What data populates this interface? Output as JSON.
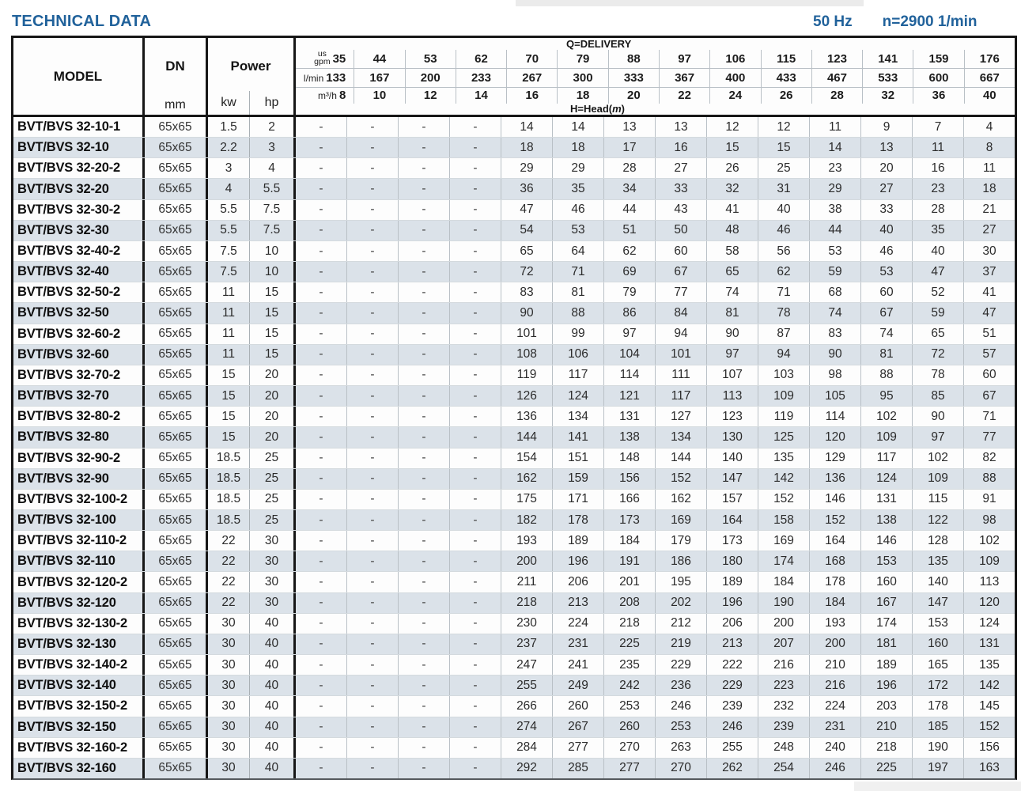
{
  "page": {
    "title": "TECHNICAL DATA",
    "frequency": "50 Hz",
    "speed": "n=2900 1/min"
  },
  "table": {
    "headers": {
      "model": "MODEL",
      "dn": "DN",
      "dn_unit": "mm",
      "power": "Power",
      "power_kw": "kw",
      "power_hp": "hp",
      "delivery_label": "Q=DELIVERY",
      "head_label_pre": "H=Head(",
      "head_label_m": "m",
      "head_label_post": ")",
      "unit_us": "us",
      "unit_gpm": "gpm",
      "unit_lmin": "l/min",
      "unit_m3h": "m³/h",
      "gpm_values": [
        "35",
        "44",
        "53",
        "62",
        "70",
        "79",
        "88",
        "97",
        "106",
        "115",
        "123",
        "141",
        "159",
        "176"
      ],
      "lmin_values": [
        "133",
        "167",
        "200",
        "233",
        "267",
        "300",
        "333",
        "367",
        "400",
        "433",
        "467",
        "533",
        "600",
        "667"
      ],
      "m3h_values": [
        "8",
        "10",
        "12",
        "14",
        "16",
        "18",
        "20",
        "22",
        "24",
        "26",
        "28",
        "32",
        "36",
        "40"
      ]
    },
    "rows": [
      {
        "model": "BVT/BVS 32-10-1",
        "dn": "65x65",
        "kw": "1.5",
        "hp": "2",
        "head": [
          "-",
          "-",
          "-",
          "-",
          "14",
          "14",
          "13",
          "13",
          "12",
          "12",
          "11",
          "9",
          "7",
          "4"
        ]
      },
      {
        "model": "BVT/BVS 32-10",
        "dn": "65x65",
        "kw": "2.2",
        "hp": "3",
        "head": [
          "-",
          "-",
          "-",
          "-",
          "18",
          "18",
          "17",
          "16",
          "15",
          "15",
          "14",
          "13",
          "11",
          "8"
        ]
      },
      {
        "model": "BVT/BVS 32-20-2",
        "dn": "65x65",
        "kw": "3",
        "hp": "4",
        "head": [
          "-",
          "-",
          "-",
          "-",
          "29",
          "29",
          "28",
          "27",
          "26",
          "25",
          "23",
          "20",
          "16",
          "11"
        ]
      },
      {
        "model": "BVT/BVS 32-20",
        "dn": "65x65",
        "kw": "4",
        "hp": "5.5",
        "head": [
          "-",
          "-",
          "-",
          "-",
          "36",
          "35",
          "34",
          "33",
          "32",
          "31",
          "29",
          "27",
          "23",
          "18"
        ]
      },
      {
        "model": "BVT/BVS 32-30-2",
        "dn": "65x65",
        "kw": "5.5",
        "hp": "7.5",
        "head": [
          "-",
          "-",
          "-",
          "-",
          "47",
          "46",
          "44",
          "43",
          "41",
          "40",
          "38",
          "33",
          "28",
          "21"
        ]
      },
      {
        "model": "BVT/BVS 32-30",
        "dn": "65x65",
        "kw": "5.5",
        "hp": "7.5",
        "head": [
          "-",
          "-",
          "-",
          "-",
          "54",
          "53",
          "51",
          "50",
          "48",
          "46",
          "44",
          "40",
          "35",
          "27"
        ]
      },
      {
        "model": "BVT/BVS 32-40-2",
        "dn": "65x65",
        "kw": "7.5",
        "hp": "10",
        "head": [
          "-",
          "-",
          "-",
          "-",
          "65",
          "64",
          "62",
          "60",
          "58",
          "56",
          "53",
          "46",
          "40",
          "30"
        ]
      },
      {
        "model": "BVT/BVS 32-40",
        "dn": "65x65",
        "kw": "7.5",
        "hp": "10",
        "head": [
          "-",
          "-",
          "-",
          "-",
          "72",
          "71",
          "69",
          "67",
          "65",
          "62",
          "59",
          "53",
          "47",
          "37"
        ]
      },
      {
        "model": "BVT/BVS 32-50-2",
        "dn": "65x65",
        "kw": "11",
        "hp": "15",
        "head": [
          "-",
          "-",
          "-",
          "-",
          "83",
          "81",
          "79",
          "77",
          "74",
          "71",
          "68",
          "60",
          "52",
          "41"
        ]
      },
      {
        "model": "BVT/BVS 32-50",
        "dn": "65x65",
        "kw": "11",
        "hp": "15",
        "head": [
          "-",
          "-",
          "-",
          "-",
          "90",
          "88",
          "86",
          "84",
          "81",
          "78",
          "74",
          "67",
          "59",
          "47"
        ]
      },
      {
        "model": "BVT/BVS 32-60-2",
        "dn": "65x65",
        "kw": "11",
        "hp": "15",
        "head": [
          "-",
          "-",
          "-",
          "-",
          "101",
          "99",
          "97",
          "94",
          "90",
          "87",
          "83",
          "74",
          "65",
          "51"
        ]
      },
      {
        "model": "BVT/BVS 32-60",
        "dn": "65x65",
        "kw": "11",
        "hp": "15",
        "head": [
          "-",
          "-",
          "-",
          "-",
          "108",
          "106",
          "104",
          "101",
          "97",
          "94",
          "90",
          "81",
          "72",
          "57"
        ]
      },
      {
        "model": "BVT/BVS 32-70-2",
        "dn": "65x65",
        "kw": "15",
        "hp": "20",
        "head": [
          "-",
          "-",
          "-",
          "-",
          "119",
          "117",
          "114",
          "111",
          "107",
          "103",
          "98",
          "88",
          "78",
          "60"
        ]
      },
      {
        "model": "BVT/BVS 32-70",
        "dn": "65x65",
        "kw": "15",
        "hp": "20",
        "head": [
          "-",
          "-",
          "-",
          "-",
          "126",
          "124",
          "121",
          "117",
          "113",
          "109",
          "105",
          "95",
          "85",
          "67"
        ]
      },
      {
        "model": "BVT/BVS 32-80-2",
        "dn": "65x65",
        "kw": "15",
        "hp": "20",
        "head": [
          "-",
          "-",
          "-",
          "-",
          "136",
          "134",
          "131",
          "127",
          "123",
          "119",
          "114",
          "102",
          "90",
          "71"
        ]
      },
      {
        "model": "BVT/BVS 32-80",
        "dn": "65x65",
        "kw": "15",
        "hp": "20",
        "head": [
          "-",
          "-",
          "-",
          "-",
          "144",
          "141",
          "138",
          "134",
          "130",
          "125",
          "120",
          "109",
          "97",
          "77"
        ]
      },
      {
        "model": "BVT/BVS 32-90-2",
        "dn": "65x65",
        "kw": "18.5",
        "hp": "25",
        "head": [
          "-",
          "-",
          "-",
          "-",
          "154",
          "151",
          "148",
          "144",
          "140",
          "135",
          "129",
          "117",
          "102",
          "82"
        ]
      },
      {
        "model": "BVT/BVS 32-90",
        "dn": "65x65",
        "kw": "18.5",
        "hp": "25",
        "head": [
          "-",
          "-",
          "-",
          "-",
          "162",
          "159",
          "156",
          "152",
          "147",
          "142",
          "136",
          "124",
          "109",
          "88"
        ]
      },
      {
        "model": "BVT/BVS 32-100-2",
        "dn": "65x65",
        "kw": "18.5",
        "hp": "25",
        "head": [
          "-",
          "-",
          "-",
          "-",
          "175",
          "171",
          "166",
          "162",
          "157",
          "152",
          "146",
          "131",
          "115",
          "91"
        ]
      },
      {
        "model": "BVT/BVS 32-100",
        "dn": "65x65",
        "kw": "18.5",
        "hp": "25",
        "head": [
          "-",
          "-",
          "-",
          "-",
          "182",
          "178",
          "173",
          "169",
          "164",
          "158",
          "152",
          "138",
          "122",
          "98"
        ]
      },
      {
        "model": "BVT/BVS 32-110-2",
        "dn": "65x65",
        "kw": "22",
        "hp": "30",
        "head": [
          "-",
          "-",
          "-",
          "-",
          "193",
          "189",
          "184",
          "179",
          "173",
          "169",
          "164",
          "146",
          "128",
          "102"
        ]
      },
      {
        "model": "BVT/BVS 32-110",
        "dn": "65x65",
        "kw": "22",
        "hp": "30",
        "head": [
          "-",
          "-",
          "-",
          "-",
          "200",
          "196",
          "191",
          "186",
          "180",
          "174",
          "168",
          "153",
          "135",
          "109"
        ]
      },
      {
        "model": "BVT/BVS 32-120-2",
        "dn": "65x65",
        "kw": "22",
        "hp": "30",
        "head": [
          "-",
          "-",
          "-",
          "-",
          "211",
          "206",
          "201",
          "195",
          "189",
          "184",
          "178",
          "160",
          "140",
          "113"
        ]
      },
      {
        "model": "BVT/BVS 32-120",
        "dn": "65x65",
        "kw": "22",
        "hp": "30",
        "head": [
          "-",
          "-",
          "-",
          "-",
          "218",
          "213",
          "208",
          "202",
          "196",
          "190",
          "184",
          "167",
          "147",
          "120"
        ]
      },
      {
        "model": "BVT/BVS 32-130-2",
        "dn": "65x65",
        "kw": "30",
        "hp": "40",
        "head": [
          "-",
          "-",
          "-",
          "-",
          "230",
          "224",
          "218",
          "212",
          "206",
          "200",
          "193",
          "174",
          "153",
          "124"
        ]
      },
      {
        "model": "BVT/BVS 32-130",
        "dn": "65x65",
        "kw": "30",
        "hp": "40",
        "head": [
          "-",
          "-",
          "-",
          "-",
          "237",
          "231",
          "225",
          "219",
          "213",
          "207",
          "200",
          "181",
          "160",
          "131"
        ]
      },
      {
        "model": "BVT/BVS 32-140-2",
        "dn": "65x65",
        "kw": "30",
        "hp": "40",
        "head": [
          "-",
          "-",
          "-",
          "-",
          "247",
          "241",
          "235",
          "229",
          "222",
          "216",
          "210",
          "189",
          "165",
          "135"
        ]
      },
      {
        "model": "BVT/BVS 32-140",
        "dn": "65x65",
        "kw": "30",
        "hp": "40",
        "head": [
          "-",
          "-",
          "-",
          "-",
          "255",
          "249",
          "242",
          "236",
          "229",
          "223",
          "216",
          "196",
          "172",
          "142"
        ]
      },
      {
        "model": "BVT/BVS 32-150-2",
        "dn": "65x65",
        "kw": "30",
        "hp": "40",
        "head": [
          "-",
          "-",
          "-",
          "-",
          "266",
          "260",
          "253",
          "246",
          "239",
          "232",
          "224",
          "203",
          "178",
          "145"
        ]
      },
      {
        "model": "BVT/BVS 32-150",
        "dn": "65x65",
        "kw": "30",
        "hp": "40",
        "head": [
          "-",
          "-",
          "-",
          "-",
          "274",
          "267",
          "260",
          "253",
          "246",
          "239",
          "231",
          "210",
          "185",
          "152"
        ]
      },
      {
        "model": "BVT/BVS 32-160-2",
        "dn": "65x65",
        "kw": "30",
        "hp": "40",
        "head": [
          "-",
          "-",
          "-",
          "-",
          "284",
          "277",
          "270",
          "263",
          "255",
          "248",
          "240",
          "218",
          "190",
          "156"
        ]
      },
      {
        "model": "BVT/BVS 32-160",
        "dn": "65x65",
        "kw": "30",
        "hp": "40",
        "head": [
          "-",
          "-",
          "-",
          "-",
          "292",
          "285",
          "277",
          "270",
          "262",
          "254",
          "246",
          "225",
          "197",
          "163"
        ]
      }
    ]
  }
}
